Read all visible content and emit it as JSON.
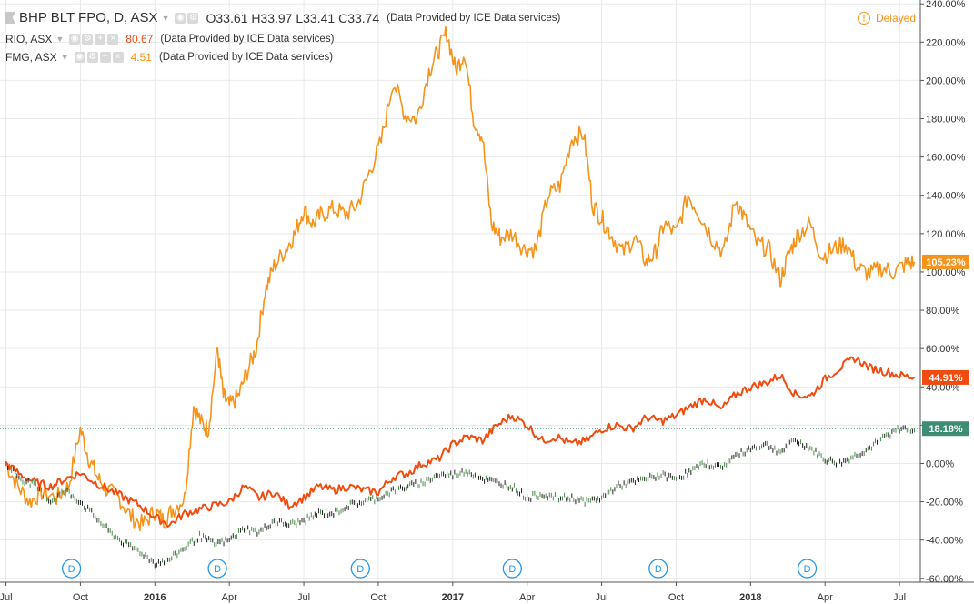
{
  "header": {
    "main": {
      "symbol": "BHP BLT FPO, D, ASX",
      "open": "O33.61",
      "high": "H33.97",
      "low": "L33.41",
      "close": "C33.74",
      "note": "(Data Provided by ICE Data services)"
    },
    "rio": {
      "symbol": "RIO, ASX",
      "value": "80.67",
      "note": "(Data Provided by ICE Data services)"
    },
    "fmg": {
      "symbol": "FMG, ASX",
      "value": "4.51",
      "note": "(Data Provided by ICE Data services)"
    },
    "delayed_label": "Delayed",
    "delayed_icon": "!"
  },
  "colors": {
    "bhp": "#222222",
    "rio": "#f24b0f",
    "fmg": "#f7931a",
    "grid": "#e9e9e9",
    "dividend": "#2196f3",
    "ref_line": "#4a9a8a"
  },
  "chart_data": {
    "type": "line",
    "y_axis": {
      "unit": "%",
      "ylim": [
        -62,
        242
      ],
      "ticks": [
        "240.00%",
        "220.00%",
        "200.00%",
        "180.00%",
        "160.00%",
        "140.00%",
        "120.00%",
        "100.00%",
        "80.00%",
        "60.00%",
        "40.00%",
        "20.00%",
        "0.00%",
        "-20.00%",
        "-40.00%",
        "-60.00%"
      ],
      "tick_values": [
        240,
        220,
        200,
        180,
        160,
        140,
        120,
        100,
        80,
        60,
        40,
        20,
        0,
        -20,
        -40,
        -60
      ]
    },
    "x_axis": {
      "labels": [
        "Jul",
        "Oct",
        "2016",
        "Apr",
        "Jul",
        "Oct",
        "2017",
        "Apr",
        "Jul",
        "Oct",
        "2018",
        "Apr",
        "Jul"
      ],
      "label_t": [
        0.0,
        0.25,
        0.5,
        0.75,
        1.0,
        1.25,
        1.5,
        1.75,
        2.0,
        2.25,
        2.5,
        2.75,
        3.0
      ],
      "bold": [
        false,
        false,
        true,
        false,
        false,
        false,
        true,
        false,
        false,
        false,
        true,
        false,
        false
      ],
      "t_range": [
        -0.02,
        3.07
      ]
    },
    "grid": true,
    "last_value_labels": [
      {
        "series": "FMG",
        "text": "105.23%",
        "value": 105.23
      },
      {
        "series": "RIO",
        "text": "44.91%",
        "value": 44.91
      },
      {
        "series": "BHP BLT FPO",
        "text": "18.18%",
        "value": 18.18
      }
    ],
    "dividend_markers": {
      "label": "D",
      "t": [
        0.22,
        0.71,
        1.19,
        1.7,
        2.19,
        2.69
      ]
    },
    "series": [
      {
        "name": "FMG",
        "color": "#f7931a",
        "t": [
          0.0,
          0.04,
          0.08,
          0.12,
          0.17,
          0.21,
          0.25,
          0.28,
          0.31,
          0.34,
          0.38,
          0.42,
          0.46,
          0.5,
          0.53,
          0.56,
          0.6,
          0.63,
          0.66,
          0.68,
          0.71,
          0.73,
          0.75,
          0.78,
          0.81,
          0.84,
          0.87,
          0.9,
          0.94,
          0.97,
          1.0,
          1.03,
          1.06,
          1.1,
          1.14,
          1.18,
          1.22,
          1.26,
          1.3,
          1.34,
          1.38,
          1.42,
          1.45,
          1.48,
          1.51,
          1.54,
          1.57,
          1.6,
          1.63,
          1.66,
          1.7,
          1.74,
          1.78,
          1.82,
          1.86,
          1.9,
          1.94,
          1.97,
          2.0,
          2.03,
          2.07,
          2.11,
          2.15,
          2.18,
          2.21,
          2.25,
          2.29,
          2.33,
          2.37,
          2.41,
          2.45,
          2.48,
          2.52,
          2.56,
          2.6,
          2.63,
          2.66,
          2.7,
          2.74,
          2.78,
          2.82,
          2.86,
          2.9,
          2.94,
          2.98,
          3.02,
          3.05
        ],
        "values": [
          0,
          -12,
          -20,
          -15,
          -18,
          -12,
          18,
          2,
          -8,
          -14,
          -18,
          -28,
          -32,
          -25,
          -30,
          -24,
          -18,
          30,
          20,
          18,
          60,
          35,
          30,
          35,
          48,
          60,
          90,
          103,
          112,
          120,
          133,
          125,
          130,
          133,
          130,
          135,
          152,
          168,
          200,
          182,
          180,
          205,
          215,
          225,
          205,
          215,
          180,
          170,
          125,
          118,
          120,
          112,
          112,
          140,
          145,
          170,
          172,
          135,
          128,
          120,
          110,
          118,
          105,
          110,
          125,
          120,
          140,
          130,
          118,
          110,
          138,
          128,
          115,
          112,
          96,
          110,
          120,
          125,
          108,
          112,
          115,
          102,
          99,
          102,
          100,
          104,
          105.23
        ]
      },
      {
        "name": "RIO",
        "color": "#f24b0f",
        "t": [
          0.0,
          0.05,
          0.1,
          0.15,
          0.2,
          0.25,
          0.3,
          0.35,
          0.4,
          0.45,
          0.5,
          0.55,
          0.6,
          0.65,
          0.7,
          0.75,
          0.8,
          0.85,
          0.9,
          0.95,
          1.0,
          1.05,
          1.1,
          1.15,
          1.2,
          1.25,
          1.3,
          1.35,
          1.4,
          1.45,
          1.5,
          1.55,
          1.6,
          1.65,
          1.7,
          1.75,
          1.8,
          1.85,
          1.9,
          1.95,
          2.0,
          2.05,
          2.1,
          2.15,
          2.2,
          2.25,
          2.3,
          2.35,
          2.4,
          2.45,
          2.5,
          2.55,
          2.6,
          2.65,
          2.7,
          2.75,
          2.8,
          2.85,
          2.9,
          2.95,
          3.0,
          3.05
        ],
        "values": [
          0,
          -6,
          -10,
          -12,
          -8,
          -5,
          -10,
          -14,
          -18,
          -22,
          -28,
          -32,
          -26,
          -24,
          -22,
          -20,
          -12,
          -18,
          -15,
          -22,
          -18,
          -12,
          -14,
          -12,
          -14,
          -15,
          -7,
          -5,
          0,
          2,
          10,
          14,
          12,
          20,
          25,
          20,
          12,
          14,
          10,
          12,
          18,
          20,
          18,
          24,
          22,
          25,
          30,
          34,
          28,
          36,
          40,
          42,
          46,
          36,
          35,
          44,
          50,
          55,
          50,
          48,
          46,
          44.91
        ]
      },
      {
        "name": "BHP BLT FPO",
        "color": "#222222",
        "t": [
          0.0,
          0.05,
          0.1,
          0.15,
          0.2,
          0.25,
          0.3,
          0.35,
          0.4,
          0.45,
          0.5,
          0.55,
          0.6,
          0.65,
          0.7,
          0.75,
          0.8,
          0.85,
          0.9,
          0.95,
          1.0,
          1.05,
          1.1,
          1.15,
          1.2,
          1.25,
          1.3,
          1.35,
          1.4,
          1.45,
          1.5,
          1.55,
          1.6,
          1.65,
          1.7,
          1.75,
          1.8,
          1.85,
          1.9,
          1.95,
          2.0,
          2.05,
          2.1,
          2.15,
          2.2,
          2.25,
          2.3,
          2.35,
          2.4,
          2.45,
          2.5,
          2.55,
          2.6,
          2.65,
          2.7,
          2.75,
          2.8,
          2.85,
          2.9,
          2.95,
          3.0,
          3.05
        ],
        "values": [
          0,
          -8,
          -12,
          -20,
          -14,
          -20,
          -28,
          -36,
          -42,
          -46,
          -52,
          -50,
          -44,
          -38,
          -42,
          -40,
          -34,
          -36,
          -30,
          -32,
          -30,
          -26,
          -26,
          -22,
          -20,
          -18,
          -14,
          -12,
          -10,
          -6,
          -6,
          -4,
          -8,
          -10,
          -12,
          -18,
          -16,
          -18,
          -18,
          -20,
          -18,
          -12,
          -10,
          -8,
          -6,
          -8,
          -4,
          0,
          -2,
          4,
          8,
          10,
          6,
          12,
          8,
          2,
          0,
          4,
          8,
          14,
          18,
          18.18
        ]
      }
    ]
  }
}
